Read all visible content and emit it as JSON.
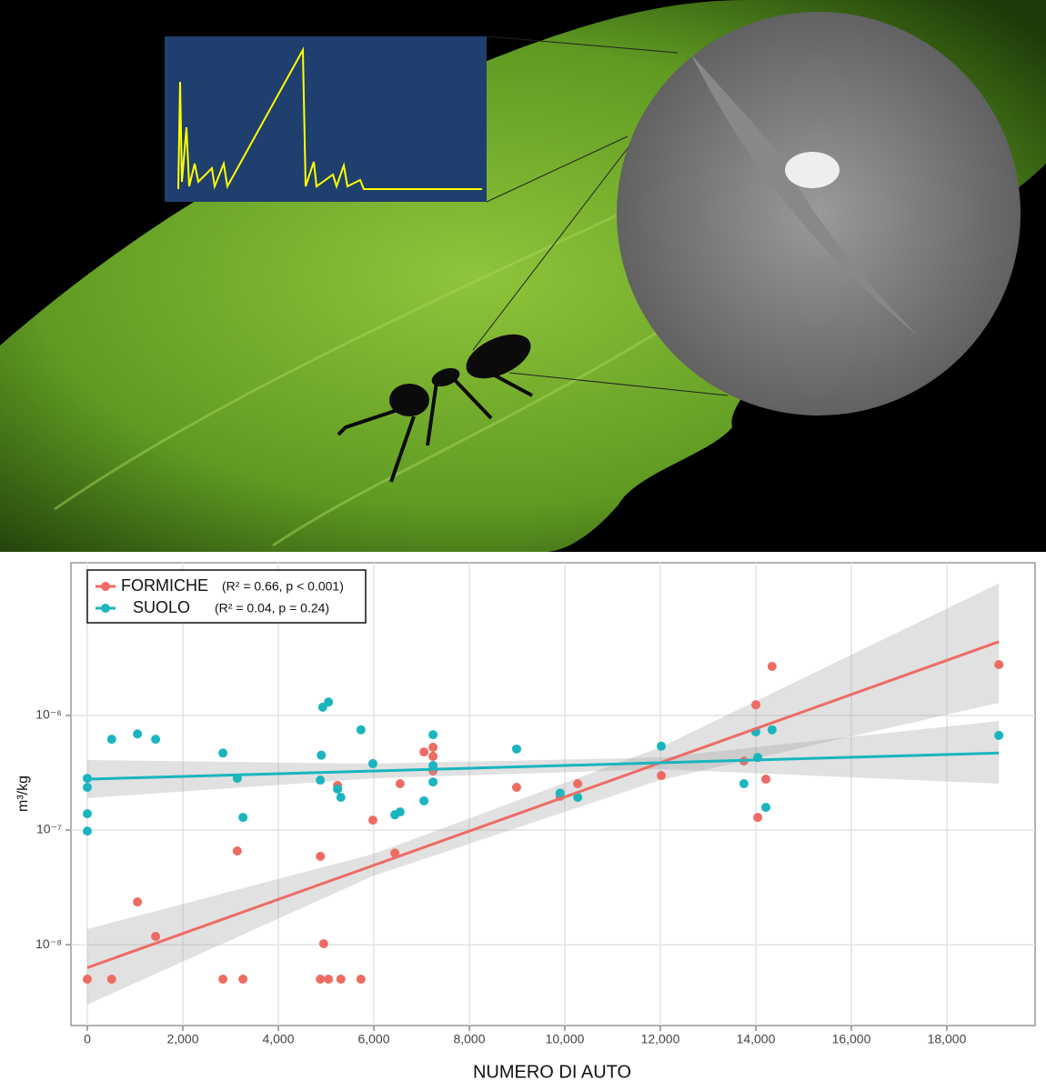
{
  "chart_data": {
    "type": "scatter",
    "log_y": true,
    "grid": true,
    "legend": "top-left",
    "x_label": "NUMERO  DI  AUTO",
    "y_label": "m³/kg",
    "xlim": [
      -343,
      19848
    ],
    "ylim": [
      1.97e-09,
      2.15e-05
    ],
    "xticks": [
      0,
      {
        "value": 2000,
        "label": "2,000"
      },
      {
        "value": 4000,
        "label": "4,000"
      },
      {
        "value": 6000,
        "label": "6,000"
      },
      {
        "value": 8000,
        "label": "8,000"
      },
      {
        "value": 10000,
        "label": "10,000"
      },
      {
        "value": 12000,
        "label": "12,000"
      },
      {
        "value": 14000,
        "label": "14,000"
      },
      {
        "value": 16000,
        "label": "16,000"
      },
      {
        "value": 18000,
        "label": "18,000"
      }
    ],
    "yticks": [
      {
        "value": 1e-08,
        "label": "10⁻⁸"
      },
      {
        "value": 1e-07,
        "label": "10⁻⁷"
      },
      {
        "value": 1e-06,
        "label": "10⁻⁶"
      }
    ],
    "series": [
      {
        "name": "FORMICHE",
        "stats": "(R² = 0.66, p < 0.001)",
        "color": "#ee6b63",
        "x": [
          0,
          1050,
          1430,
          510,
          2840,
          3140,
          3260,
          4880,
          4950,
          4880,
          5050,
          5310,
          5730,
          5240,
          5980,
          6440,
          6550,
          7050,
          7240,
          7240,
          7240,
          8990,
          9900,
          10270,
          12020,
          13750,
          14000,
          14340,
          14210,
          14040,
          19090
        ],
        "values": [
          5e-09,
          2.36e-08,
          1.18e-08,
          5e-09,
          5e-09,
          6.57e-08,
          5e-09,
          5.9e-08,
          1.02e-08,
          5e-09,
          5e-09,
          5e-09,
          5e-09,
          2.45e-07,
          1.22e-07,
          6.3e-08,
          2.54e-07,
          4.8e-07,
          5.27e-07,
          4.4e-07,
          3.28e-07,
          2.36e-07,
          1.97e-07,
          2.54e-07,
          2.99e-07,
          4e-07,
          1.24e-06,
          2.68e-06,
          2.78e-07,
          1.29e-07,
          2.78e-06
        ],
        "fit": {
          "x": [
            0,
            19090
          ],
          "values": [
            6.3e-09,
            4.4e-06
          ]
        },
        "band": {
          "x": [
            0,
            6000,
            12000,
            19090
          ],
          "lower": [
            3e-09,
            4e-08,
            2.73e-07,
            1.29e-06
          ],
          "upper": [
            1.37e-08,
            6.2e-08,
            5.27e-07,
            1.42e-05
          ]
        }
      },
      {
        "name": "SUOLO",
        "stats": "(R² = 0.04, p = 0.24)",
        "color": "#1ab5be",
        "x": [
          0,
          0,
          0,
          0,
          510,
          1050,
          1430,
          2840,
          3140,
          3260,
          4900,
          4880,
          4930,
          5050,
          5240,
          5310,
          5730,
          5980,
          6440,
          6550,
          7050,
          7240,
          7240,
          7240,
          8990,
          9900,
          10270,
          12020,
          13750,
          14000,
          14040,
          14340,
          14210,
          19090
        ],
        "values": [
          2.83e-07,
          2.36e-07,
          1.39e-07,
          9.8e-08,
          6.2e-07,
          6.9e-07,
          6.2e-07,
          4.7e-07,
          2.83e-07,
          1.29e-07,
          4.5e-07,
          2.73e-07,
          1.18e-06,
          1.31e-06,
          2.28e-07,
          1.93e-07,
          7.5e-07,
          3.8e-07,
          1.36e-07,
          1.44e-07,
          1.8e-07,
          6.8e-07,
          3.66e-07,
          2.63e-07,
          5.1e-07,
          2.1e-07,
          1.93e-07,
          5.4e-07,
          2.54e-07,
          7.2e-07,
          4.3e-07,
          7.5e-07,
          1.58e-07,
          6.7e-07
        ],
        "fit": {
          "x": [
            0,
            19090
          ],
          "values": [
            2.78e-07,
            4.7e-07
          ]
        },
        "band": {
          "x": [
            0,
            6000,
            12000,
            19090
          ],
          "lower": [
            1.9e-07,
            2.83e-07,
            3.4e-07,
            2.54e-07
          ],
          "upper": [
            4.08e-07,
            3.8e-07,
            4.3e-07,
            8.96e-07
          ]
        }
      }
    ]
  }
}
